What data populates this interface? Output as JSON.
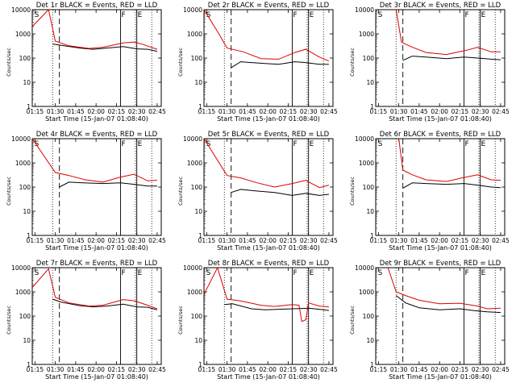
{
  "chart_data": {
    "type": "line",
    "x_ticks": [
      "01:15",
      "01:30",
      "01:45",
      "02:00",
      "02:15",
      "02:30",
      "02:45"
    ],
    "y_ticks": [
      "1",
      "10",
      "100",
      "1000",
      "10000"
    ],
    "xlabel": "Start Time (15-Jan-07 01:08:40)",
    "ylabel": "Counts/sec",
    "yscale": "log",
    "ylim": [
      1,
      10000
    ],
    "xlim_minutes": [
      73,
      168
    ],
    "series_colors": {
      "events": "#000000",
      "lld": "#dd0000"
    },
    "markers": [
      {
        "label": "S",
        "minute": 74
      },
      {
        "label": "F",
        "minute": 138
      },
      {
        "label": "E",
        "minute": 150
      }
    ],
    "vlines": {
      "dotted": [
        88,
        149,
        161
      ],
      "dashed": 93,
      "solid": [
        138,
        150
      ]
    },
    "panels": [
      {
        "title": "Det 1r BLACK = Events, RED = LLD",
        "lld": [
          [
            73,
            2000
          ],
          [
            85,
            10000
          ],
          [
            90,
            500
          ],
          [
            100,
            320
          ],
          [
            115,
            250
          ],
          [
            125,
            280
          ],
          [
            140,
            420
          ],
          [
            148,
            460
          ],
          [
            155,
            360
          ],
          [
            165,
            230
          ]
        ],
        "events": [
          [
            88,
            380
          ],
          [
            94,
            340
          ],
          [
            108,
            260
          ],
          [
            118,
            230
          ],
          [
            128,
            260
          ],
          [
            140,
            300
          ],
          [
            150,
            240
          ],
          [
            158,
            230
          ],
          [
            165,
            190
          ]
        ]
      },
      {
        "title": "Det 2r BLACK = Events, RED = LLD",
        "lld": [
          [
            73,
            10000
          ],
          [
            84,
            1000
          ],
          [
            90,
            260
          ],
          [
            102,
            180
          ],
          [
            115,
            95
          ],
          [
            128,
            90
          ],
          [
            140,
            170
          ],
          [
            148,
            230
          ],
          [
            158,
            110
          ],
          [
            165,
            75
          ]
        ],
        "events": [
          [
            93,
            40
          ],
          [
            100,
            70
          ],
          [
            108,
            65
          ],
          [
            118,
            60
          ],
          [
            128,
            55
          ],
          [
            140,
            70
          ],
          [
            148,
            65
          ],
          [
            158,
            55
          ],
          [
            165,
            55
          ]
        ]
      },
      {
        "title": "Det 3r BLACK = Events, RED = LLD",
        "lld": [
          [
            88,
            10000
          ],
          [
            92,
            450
          ],
          [
            100,
            280
          ],
          [
            110,
            170
          ],
          [
            125,
            140
          ],
          [
            140,
            210
          ],
          [
            148,
            280
          ],
          [
            158,
            180
          ],
          [
            165,
            180
          ]
        ],
        "events": [
          [
            93,
            80
          ],
          [
            100,
            120
          ],
          [
            110,
            110
          ],
          [
            125,
            95
          ],
          [
            138,
            110
          ],
          [
            148,
            100
          ],
          [
            158,
            90
          ],
          [
            165,
            85
          ]
        ]
      },
      {
        "title": "Det 4r BLACK = Events, RED = LLD",
        "lld": [
          [
            73,
            10000
          ],
          [
            90,
            400
          ],
          [
            100,
            300
          ],
          [
            112,
            200
          ],
          [
            125,
            160
          ],
          [
            138,
            260
          ],
          [
            148,
            340
          ],
          [
            158,
            180
          ],
          [
            165,
            190
          ]
        ],
        "events": [
          [
            93,
            100
          ],
          [
            100,
            160
          ],
          [
            110,
            150
          ],
          [
            125,
            140
          ],
          [
            138,
            150
          ],
          [
            148,
            130
          ],
          [
            158,
            110
          ],
          [
            165,
            110
          ]
        ]
      },
      {
        "title": "Det 5r BLACK = Events, RED = LLD",
        "lld": [
          [
            73,
            10000
          ],
          [
            90,
            300
          ],
          [
            100,
            240
          ],
          [
            112,
            150
          ],
          [
            125,
            100
          ],
          [
            138,
            140
          ],
          [
            148,
            190
          ],
          [
            158,
            95
          ],
          [
            165,
            120
          ]
        ],
        "events": [
          [
            93,
            60
          ],
          [
            100,
            80
          ],
          [
            110,
            70
          ],
          [
            125,
            60
          ],
          [
            138,
            45
          ],
          [
            148,
            55
          ],
          [
            158,
            45
          ],
          [
            165,
            50
          ]
        ]
      },
      {
        "title": "Det 6r BLACK = Events, RED = LLD",
        "lld": [
          [
            90,
            10000
          ],
          [
            93,
            500
          ],
          [
            100,
            320
          ],
          [
            110,
            200
          ],
          [
            125,
            170
          ],
          [
            138,
            250
          ],
          [
            148,
            320
          ],
          [
            158,
            200
          ],
          [
            165,
            190
          ]
        ],
        "events": [
          [
            93,
            90
          ],
          [
            100,
            150
          ],
          [
            110,
            140
          ],
          [
            125,
            130
          ],
          [
            138,
            140
          ],
          [
            148,
            120
          ],
          [
            158,
            100
          ],
          [
            165,
            95
          ]
        ]
      },
      {
        "title": "Det 7r BLACK = Events, RED = LLD",
        "lld": [
          [
            73,
            1500
          ],
          [
            85,
            9000
          ],
          [
            90,
            600
          ],
          [
            100,
            350
          ],
          [
            115,
            260
          ],
          [
            125,
            280
          ],
          [
            140,
            480
          ],
          [
            148,
            430
          ],
          [
            158,
            280
          ],
          [
            165,
            200
          ]
        ],
        "events": [
          [
            88,
            500
          ],
          [
            94,
            380
          ],
          [
            108,
            270
          ],
          [
            118,
            240
          ],
          [
            128,
            260
          ],
          [
            140,
            310
          ],
          [
            150,
            240
          ],
          [
            158,
            230
          ],
          [
            165,
            180
          ]
        ]
      },
      {
        "title": "Det 8r BLACK = Events, RED = LLD",
        "lld": [
          [
            73,
            800
          ],
          [
            83,
            10000
          ],
          [
            90,
            500
          ],
          [
            100,
            420
          ],
          [
            115,
            280
          ],
          [
            125,
            250
          ],
          [
            138,
            300
          ],
          [
            143,
            280
          ],
          [
            145,
            60
          ],
          [
            148,
            70
          ],
          [
            150,
            350
          ],
          [
            158,
            260
          ],
          [
            165,
            240
          ]
        ],
        "events": [
          [
            88,
            300
          ],
          [
            94,
            320
          ],
          [
            108,
            200
          ],
          [
            118,
            180
          ],
          [
            128,
            190
          ],
          [
            138,
            200
          ],
          [
            150,
            210
          ],
          [
            158,
            190
          ],
          [
            165,
            170
          ]
        ]
      },
      {
        "title": "Det 9r BLACK = Events, RED = LLD",
        "lld": [
          [
            82,
            10000
          ],
          [
            88,
            1000
          ],
          [
            95,
            700
          ],
          [
            105,
            450
          ],
          [
            120,
            320
          ],
          [
            135,
            340
          ],
          [
            148,
            260
          ],
          [
            155,
            200
          ],
          [
            165,
            210
          ]
        ],
        "events": [
          [
            88,
            700
          ],
          [
            95,
            350
          ],
          [
            105,
            220
          ],
          [
            120,
            180
          ],
          [
            135,
            200
          ],
          [
            145,
            170
          ],
          [
            155,
            150
          ],
          [
            165,
            140
          ]
        ]
      }
    ]
  }
}
